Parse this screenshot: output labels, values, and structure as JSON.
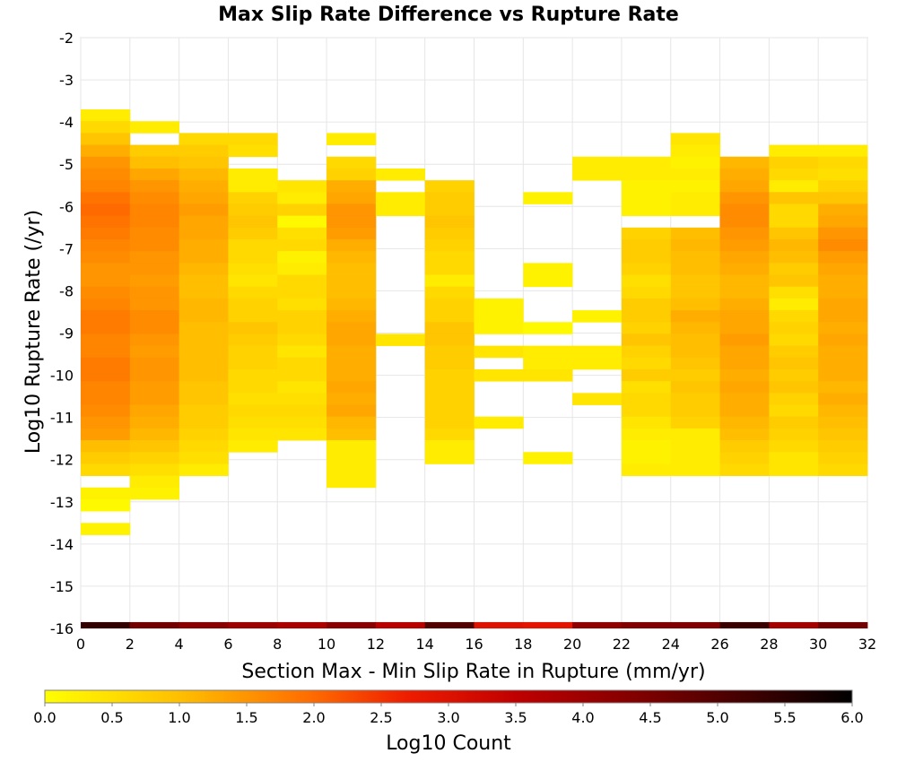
{
  "chart_data": {
    "type": "heatmap",
    "title": "Max Slip Rate Difference vs Rupture Rate",
    "xlabel": "Section Max - Min Slip Rate in Rupture (mm/yr)",
    "ylabel": "Log10 Rupture Rate (/yr)",
    "xlim": [
      0,
      32
    ],
    "ylim": [
      -16,
      -2
    ],
    "x_ticks": [
      "0",
      "2",
      "4",
      "6",
      "8",
      "10",
      "12",
      "14",
      "16",
      "18",
      "20",
      "22",
      "24",
      "26",
      "28",
      "30",
      "32"
    ],
    "y_ticks": [
      "-2",
      "-3",
      "-4",
      "-5",
      "-6",
      "-7",
      "-8",
      "-9",
      "-10",
      "-11",
      "-12",
      "-13",
      "-14",
      "-15",
      "-16"
    ],
    "grid": true,
    "x_bin_width": 2,
    "y_bin_height": 0.28,
    "x_bins": [
      0,
      2,
      4,
      6,
      8,
      10,
      12,
      14,
      16,
      18,
      20,
      22,
      24,
      26,
      28,
      30
    ],
    "y_bins": [
      -3.7,
      -3.98,
      -4.26,
      -4.54,
      -4.82,
      -5.1,
      -5.38,
      -5.66,
      -5.94,
      -6.22,
      -6.5,
      -6.78,
      -7.06,
      -7.34,
      -7.62,
      -7.9,
      -8.18,
      -8.46,
      -8.74,
      -9.02,
      -9.3,
      -9.58,
      -9.86,
      -10.14,
      -10.42,
      -10.7,
      -10.98,
      -11.26,
      -11.54,
      -11.82,
      -12.1,
      -12.38,
      -12.66,
      -12.94,
      -13.22,
      -13.5
    ],
    "log10_counts": [
      [
        0.3,
        0.6,
        0.9,
        1.2,
        1.5,
        1.6,
        1.7,
        1.9,
        2.0,
        1.9,
        1.8,
        1.7,
        1.6,
        1.5,
        1.5,
        1.6,
        1.7,
        1.8,
        1.8,
        1.7,
        1.7,
        1.8,
        1.8,
        1.7,
        1.7,
        1.6,
        1.5,
        1.4,
        1.0,
        0.8,
        0.6,
        null,
        0.2,
        0.1,
        null,
        0.2
      ],
      [
        null,
        0.3,
        null,
        0.8,
        1.0,
        1.3,
        1.5,
        1.6,
        1.7,
        1.7,
        1.6,
        1.6,
        1.5,
        1.5,
        1.4,
        1.5,
        1.5,
        1.6,
        1.6,
        1.5,
        1.4,
        1.5,
        1.5,
        1.4,
        1.4,
        1.3,
        1.2,
        1.1,
        0.9,
        0.7,
        0.5,
        0.3,
        0.2,
        null,
        null,
        null
      ],
      [
        null,
        null,
        0.6,
        0.8,
        0.9,
        1.1,
        1.2,
        1.3,
        1.4,
        1.3,
        1.3,
        1.2,
        1.2,
        1.1,
        1.0,
        1.0,
        1.1,
        1.1,
        1.0,
        1.0,
        1.0,
        1.0,
        1.0,
        0.9,
        0.9,
        0.8,
        0.8,
        0.7,
        0.6,
        0.5,
        0.3,
        null,
        null,
        null,
        null,
        null
      ],
      [
        null,
        null,
        0.6,
        0.5,
        null,
        0.3,
        0.3,
        0.7,
        0.8,
        0.9,
        0.8,
        0.6,
        0.6,
        0.5,
        0.4,
        0.6,
        0.7,
        0.7,
        0.9,
        0.8,
        0.7,
        0.7,
        0.6,
        0.6,
        0.5,
        0.6,
        0.5,
        0.4,
        0.3,
        null,
        null,
        null,
        null,
        null,
        null,
        null
      ],
      [
        null,
        null,
        null,
        null,
        null,
        null,
        0.4,
        0.3,
        0.7,
        0.1,
        0.5,
        0.6,
        0.2,
        0.3,
        0.6,
        0.6,
        0.5,
        0.7,
        0.7,
        0.6,
        0.4,
        0.6,
        0.6,
        0.4,
        0.5,
        0.6,
        0.5,
        0.4,
        null,
        null,
        null,
        null,
        null,
        null,
        null,
        null
      ],
      [
        null,
        null,
        0.3,
        null,
        0.6,
        0.7,
        1.2,
        1.3,
        1.5,
        1.5,
        1.4,
        1.2,
        1.1,
        1.0,
        1.0,
        1.0,
        1.1,
        1.2,
        1.3,
        1.3,
        1.2,
        1.2,
        1.2,
        1.3,
        1.2,
        1.3,
        1.1,
        1.0,
        0.3,
        0.3,
        0.3,
        0.3,
        null,
        null,
        null,
        null
      ],
      [
        null,
        null,
        null,
        null,
        null,
        0.3,
        null,
        0.3,
        0.3,
        null,
        null,
        null,
        null,
        null,
        null,
        null,
        null,
        null,
        null,
        0.4,
        null,
        null,
        null,
        null,
        null,
        null,
        null,
        null,
        null,
        null,
        null,
        null,
        null,
        null,
        null,
        null
      ],
      [
        null,
        null,
        null,
        null,
        null,
        null,
        0.7,
        0.8,
        0.8,
        0.9,
        0.8,
        0.7,
        0.6,
        0.6,
        0.3,
        0.6,
        0.7,
        0.7,
        0.9,
        0.9,
        0.8,
        0.8,
        0.7,
        0.7,
        0.7,
        0.7,
        0.7,
        0.6,
        0.3,
        0.3,
        null,
        null,
        null,
        null,
        null,
        null
      ],
      [
        null,
        null,
        null,
        null,
        null,
        null,
        null,
        null,
        null,
        null,
        null,
        null,
        null,
        null,
        null,
        null,
        0.2,
        0.2,
        0.2,
        null,
        0.4,
        null,
        0.4,
        null,
        null,
        null,
        0.3,
        null,
        null,
        null,
        null,
        null,
        null,
        null,
        null,
        null
      ],
      [
        null,
        null,
        null,
        null,
        null,
        null,
        null,
        0.2,
        null,
        null,
        null,
        null,
        null,
        0.2,
        0.2,
        null,
        null,
        null,
        0.1,
        null,
        0.3,
        0.3,
        0.4,
        null,
        null,
        null,
        null,
        null,
        null,
        0.2,
        null,
        null,
        null,
        null,
        null,
        null
      ],
      [
        null,
        null,
        null,
        null,
        0.3,
        0.3,
        null,
        null,
        null,
        null,
        null,
        null,
        null,
        null,
        null,
        null,
        null,
        0.2,
        null,
        null,
        0.3,
        0.3,
        null,
        null,
        0.4,
        null,
        null,
        null,
        null,
        null,
        null,
        null,
        null,
        null,
        null,
        null
      ],
      [
        null,
        null,
        null,
        null,
        0.3,
        0.3,
        0.2,
        0.2,
        0.2,
        null,
        0.7,
        0.8,
        0.8,
        0.7,
        0.5,
        0.6,
        0.8,
        0.8,
        0.7,
        0.9,
        0.7,
        0.6,
        0.8,
        0.5,
        0.6,
        0.6,
        0.4,
        0.3,
        0.2,
        0.2,
        0.3,
        null,
        null,
        null,
        null,
        null
      ],
      [
        null,
        null,
        0.4,
        0.3,
        0.2,
        0.3,
        0.2,
        0.3,
        0.3,
        null,
        1.0,
        1.1,
        1.0,
        1.0,
        0.9,
        0.9,
        1.0,
        1.2,
        1.1,
        1.0,
        1.0,
        0.9,
        0.8,
        0.9,
        0.8,
        0.8,
        0.7,
        0.3,
        0.3,
        0.3,
        0.3,
        null,
        null,
        null,
        null,
        null
      ],
      [
        null,
        null,
        null,
        null,
        1.1,
        1.2,
        1.3,
        1.5,
        1.6,
        1.6,
        1.5,
        1.4,
        1.3,
        1.2,
        1.1,
        1.1,
        1.2,
        1.3,
        1.3,
        1.4,
        1.3,
        1.3,
        1.2,
        1.3,
        1.2,
        1.2,
        1.1,
        1.0,
        0.8,
        0.7,
        0.6,
        null,
        null,
        null,
        null,
        null
      ],
      [
        null,
        null,
        null,
        0.3,
        0.7,
        0.6,
        0.3,
        0.9,
        0.6,
        0.6,
        0.9,
        1.1,
        1.0,
        0.8,
        0.9,
        0.5,
        0.3,
        0.6,
        0.7,
        0.6,
        0.8,
        0.9,
        0.8,
        0.9,
        0.7,
        0.6,
        0.8,
        0.7,
        0.6,
        0.4,
        0.4,
        null,
        null,
        null,
        null,
        null
      ],
      [
        null,
        null,
        null,
        0.3,
        0.6,
        0.5,
        0.7,
        0.9,
        1.2,
        1.3,
        1.5,
        1.6,
        1.4,
        1.3,
        1.2,
        1.2,
        1.3,
        1.3,
        1.2,
        1.3,
        1.2,
        1.2,
        1.2,
        1.1,
        1.2,
        1.1,
        1.0,
        0.9,
        0.8,
        0.7,
        0.6,
        null,
        null,
        null,
        null,
        null
      ]
    ],
    "colorbar": {
      "label": "Log10 Count",
      "min": 0.0,
      "max": 6.0,
      "ticks": [
        "0.0",
        "0.5",
        "1.0",
        "1.5",
        "2.0",
        "2.5",
        "3.0",
        "3.5",
        "4.0",
        "4.5",
        "5.0",
        "5.5",
        "6.0"
      ],
      "colormap": [
        [
          0.0,
          "#ffff00"
        ],
        [
          1.0,
          "#ffbf00"
        ],
        [
          2.0,
          "#ff6a00"
        ],
        [
          2.7,
          "#ee1c00"
        ],
        [
          3.5,
          "#c00000"
        ],
        [
          4.5,
          "#7a0000"
        ],
        [
          5.3,
          "#3a0000"
        ],
        [
          6.0,
          "#000000"
        ]
      ]
    },
    "baseline_row": {
      "y_range": [
        -16,
        -15.85
      ],
      "x_bins": [
        0,
        2,
        4,
        6,
        8,
        10,
        12,
        14,
        16,
        18,
        20,
        22,
        24,
        26,
        28,
        30
      ],
      "log10_counts": [
        5.4,
        4.6,
        4.3,
        4.0,
        3.8,
        4.3,
        3.6,
        5.0,
        3.0,
        2.9,
        4.2,
        4.4,
        4.4,
        5.3,
        3.9,
        4.6
      ]
    }
  }
}
